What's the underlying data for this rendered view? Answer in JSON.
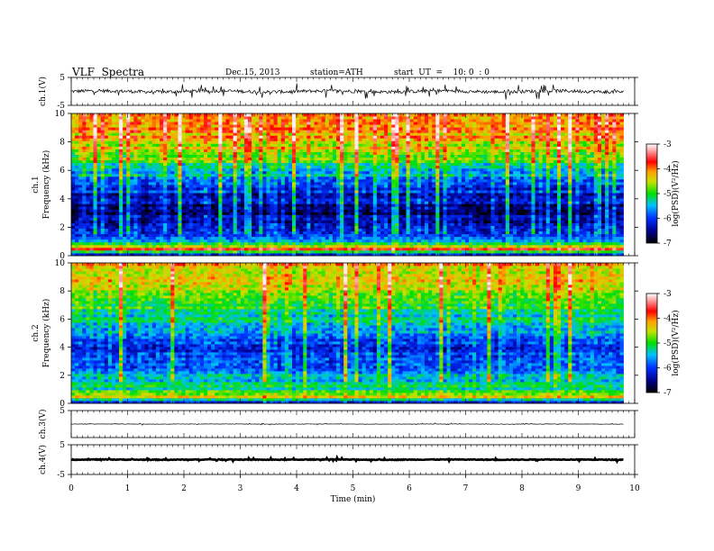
{
  "header": {
    "title": "VLF  Spectra",
    "date": "Dec.15, 2013",
    "station": "station=ATH",
    "start": "start  UT  =    10: 0  : 0"
  },
  "chart_data": [
    {
      "type": "line",
      "name": "ch1-waveform",
      "ylabel": "ch.1(V)",
      "ylim": [
        -5,
        5
      ],
      "yticks": [
        -5,
        5
      ],
      "xlim": [
        0,
        10
      ],
      "baseline": 0,
      "noise_amplitude": 1.2,
      "x_end": 9.8
    },
    {
      "type": "heatmap",
      "name": "ch1-spectrogram",
      "ylabel_line1": "ch.1",
      "ylabel_line2": "Frequency  (kHz)",
      "ylim": [
        0,
        10
      ],
      "yticks": [
        0,
        2,
        4,
        6,
        8,
        10
      ],
      "xlim": [
        0,
        10
      ],
      "x_end": 9.8,
      "colorbar": {
        "label": "log(PSD)(V²/Hz)",
        "ticks": [
          -3,
          -4,
          -5,
          -6,
          -7
        ],
        "range": [
          -7,
          -3
        ]
      },
      "level_by_frequency_khz": [
        {
          "f": 0.0,
          "v": -6.8
        },
        {
          "f": 0.5,
          "v": -3.6
        },
        {
          "f": 1.0,
          "v": -5.8
        },
        {
          "f": 2.0,
          "v": -6.3
        },
        {
          "f": 3.0,
          "v": -6.5
        },
        {
          "f": 4.0,
          "v": -6.2
        },
        {
          "f": 5.0,
          "v": -5.9
        },
        {
          "f": 6.0,
          "v": -5.2
        },
        {
          "f": 7.0,
          "v": -4.6
        },
        {
          "f": 8.0,
          "v": -4.2
        },
        {
          "f": 9.0,
          "v": -3.9
        },
        {
          "f": 10.0,
          "v": -3.8
        }
      ]
    },
    {
      "type": "heatmap",
      "name": "ch2-spectrogram",
      "ylabel_line1": "ch.2",
      "ylabel_line2": "Frequency  (kHz)",
      "ylim": [
        0,
        10
      ],
      "yticks": [
        0,
        2,
        4,
        6,
        8,
        10
      ],
      "xlim": [
        0,
        10
      ],
      "x_end": 9.8,
      "colorbar": {
        "label": "log(PSD)(V²/Hz)",
        "ticks": [
          -3,
          -4,
          -5,
          -6,
          -7
        ],
        "range": [
          -7,
          -3
        ]
      },
      "level_by_frequency_khz": [
        {
          "f": 0.0,
          "v": -6.6
        },
        {
          "f": 0.5,
          "v": -4.3
        },
        {
          "f": 1.0,
          "v": -5.2
        },
        {
          "f": 2.0,
          "v": -5.4
        },
        {
          "f": 3.0,
          "v": -5.8
        },
        {
          "f": 4.0,
          "v": -5.8
        },
        {
          "f": 5.0,
          "v": -5.6
        },
        {
          "f": 6.0,
          "v": -5.2
        },
        {
          "f": 7.0,
          "v": -4.8
        },
        {
          "f": 8.0,
          "v": -4.4
        },
        {
          "f": 9.0,
          "v": -4.2
        },
        {
          "f": 10.0,
          "v": -4.1
        }
      ]
    },
    {
      "type": "line",
      "name": "ch3-waveform",
      "ylabel": "ch.3(V)",
      "ylim": [
        -5,
        5
      ],
      "yticks": [
        5
      ],
      "xlim": [
        0,
        10
      ],
      "baseline": 0,
      "noise_amplitude": 0.15,
      "x_end": 9.8
    },
    {
      "type": "line",
      "name": "ch4-waveform",
      "ylabel": "ch.4(V)",
      "ylim": [
        -5,
        5
      ],
      "yticks": [
        -5,
        5
      ],
      "xlim": [
        0,
        10
      ],
      "baseline": 0,
      "noise_amplitude": 0.25,
      "x_end": 9.8
    }
  ],
  "xaxis": {
    "label": "Time  (min)",
    "ticks": [
      0,
      1,
      2,
      3,
      4,
      5,
      6,
      7,
      8,
      9,
      10
    ]
  }
}
